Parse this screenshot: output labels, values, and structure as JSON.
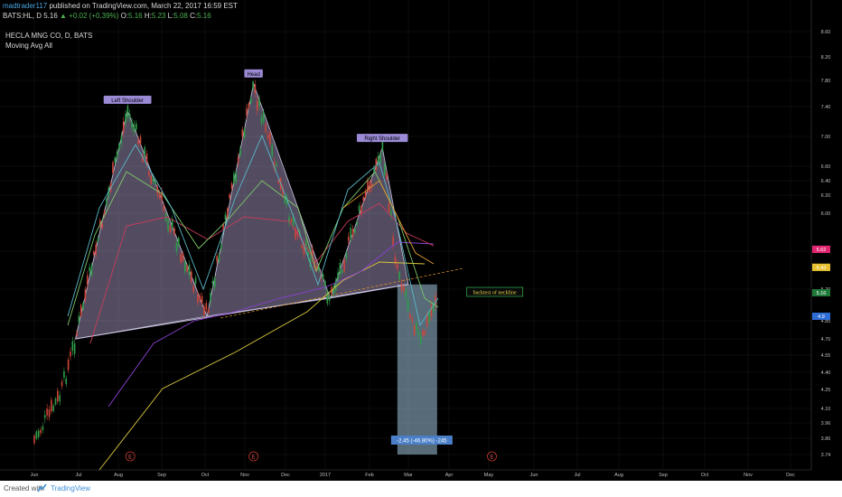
{
  "header": {
    "author": "madtrader117",
    "published": "published on TradingView.com, March 22, 2017 16:59 EST",
    "symbol": "BATS:HL, D",
    "last": "5.16",
    "change": "▲ +0.02 (+0.39%)",
    "o_label": "O:",
    "o": "5.16",
    "h_label": "H:",
    "h": "5.23",
    "l_label": "L:",
    "l": "5.08",
    "c_label": "C:",
    "c": "5.16",
    "title": "HECLA MNG CO, D, BATS",
    "indicator": "Moving Avg All"
  },
  "footer": {
    "created": "Created with",
    "brand": "TradingView"
  },
  "colors": {
    "background": "#000000",
    "grid": "#1a1a1a",
    "up": "#2e9e4a",
    "down": "#d0453a",
    "pattern_fill": "#b9a9d6",
    "neckline": "#c9c4e0",
    "neckline_ext": "#d48a2a",
    "measure_box": "#9fc2dd",
    "ma_yellow": "#d9c63b",
    "ma_purple": "#8a3fd1",
    "ma_red": "#c83b5a",
    "ma_green": "#7ec86a",
    "ma_cyan": "#58b8c8",
    "ma_orange": "#e09a2a"
  },
  "chart_data": {
    "type": "candlestick",
    "symbol": "HECLA MNG CO, D, BATS",
    "y_ticks": [
      "8.60",
      "8.20",
      "7.80",
      "7.40",
      "7.00",
      "6.60",
      "6.40",
      "6.20",
      "6.00",
      "5.60",
      "5.20",
      "4.85",
      "4.70",
      "4.55",
      "4.40",
      "4.25",
      "4.10",
      "3.96",
      "3.86",
      "3.74"
    ],
    "x_ticks": [
      "Jun",
      "Jul",
      "Aug",
      "Sep",
      "Oct",
      "Nov",
      "Dec",
      "2017",
      "Feb",
      "Mar",
      "Apr",
      "May",
      "Jun",
      "Jul",
      "Aug",
      "Sep",
      "Oct",
      "Nov",
      "Dec"
    ],
    "price_tags": [
      {
        "value": "5.62",
        "color": "#cc33cc"
      },
      {
        "value": "5.62",
        "color": "#e0246e"
      },
      {
        "value": "5.43",
        "color": "#e6d23a"
      },
      {
        "value": "5.43",
        "color": "#e6c030"
      },
      {
        "value": "5.16",
        "color": "#1f7a3a"
      },
      {
        "value": "4.9",
        "color": "#2f6ed6"
      }
    ],
    "pattern_labels": [
      "Left Shoulder",
      "Head",
      "Right Shoulder"
    ],
    "annotation": "backtest of neckline",
    "measure_label": "-2.45 (-46.80%) -245",
    "earnings_markers": [
      "E",
      "E",
      "E"
    ],
    "pattern_points": [
      {
        "date": "2016-07-01",
        "price": 4.7
      },
      {
        "date": "2016-08-08",
        "price": 7.35
      },
      {
        "date": "2016-10-05",
        "price": 4.9
      },
      {
        "date": "2016-11-08",
        "price": 7.75
      },
      {
        "date": "2017-01-03",
        "price": 5.1
      },
      {
        "date": "2017-02-10",
        "price": 6.85
      },
      {
        "date": "2017-03-01",
        "price": 5.25
      }
    ],
    "price_range": [
      3.7,
      8.7
    ]
  }
}
